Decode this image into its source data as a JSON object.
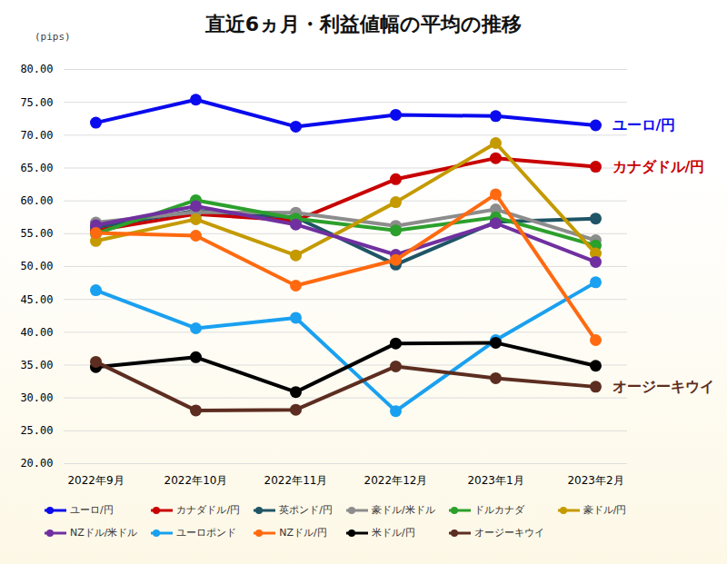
{
  "chart_data": {
    "type": "line",
    "title": "直近6ヵ月・利益値幅の平均の推移",
    "y_label": "(pips)",
    "categories": [
      "2022年9月",
      "2022年10月",
      "2022年11月",
      "2022年12月",
      "2023年1月",
      "2023年2月"
    ],
    "series": [
      {
        "name": "ユーロ/円",
        "color": "#0a0aee",
        "values": [
          71.9,
          75.4,
          71.3,
          73.1,
          72.9,
          71.5
        ]
      },
      {
        "name": "カナダドル/円",
        "color": "#c80000",
        "values": [
          55.5,
          58.0,
          57.0,
          63.3,
          66.5,
          65.2
        ]
      },
      {
        "name": "英ポンド/円",
        "color": "#1f5566",
        "values": [
          56.0,
          58.5,
          57.5,
          50.3,
          56.8,
          57.3
        ]
      },
      {
        "name": "豪ドル/米ドル",
        "color": "#8c8c8c",
        "values": [
          56.7,
          58.3,
          58.2,
          56.2,
          58.7,
          54.0
        ]
      },
      {
        "name": "ドルカナダ",
        "color": "#2ca02c",
        "values": [
          55.0,
          60.1,
          57.3,
          55.5,
          57.5,
          53.2
        ]
      },
      {
        "name": "豪ドル/円",
        "color": "#c49a00",
        "values": [
          53.9,
          57.2,
          51.7,
          59.8,
          68.8,
          52.0
        ]
      },
      {
        "name": "NZドル/米ドル",
        "color": "#7030a0",
        "values": [
          56.3,
          59.2,
          56.4,
          51.8,
          56.6,
          50.7
        ]
      },
      {
        "name": "ユーロポンド",
        "color": "#1aa0f0",
        "values": [
          46.4,
          40.6,
          42.2,
          28.0,
          38.8,
          47.6
        ]
      },
      {
        "name": "NZドル/円",
        "color": "#ff6a10",
        "values": [
          55.1,
          54.7,
          47.1,
          51.0,
          61.0,
          38.8
        ]
      },
      {
        "name": "米ドル/円",
        "color": "#000000",
        "values": [
          34.7,
          36.2,
          30.9,
          38.3,
          38.4,
          34.9
        ]
      },
      {
        "name": "オージーキウイ",
        "color": "#5c2d20",
        "values": [
          35.5,
          28.1,
          28.2,
          34.8,
          33.0,
          31.7
        ]
      }
    ],
    "annotations": [
      {
        "text": "ユーロ/円",
        "series": "ユーロ/円"
      },
      {
        "text": "カナダドル/円",
        "series": "カナダドル/円"
      },
      {
        "text": "オージーキウイ",
        "series": "オージーキウイ"
      }
    ],
    "ylim": [
      20,
      80
    ],
    "yticks": [
      {
        "value": 20,
        "label": "20.00"
      },
      {
        "value": 25,
        "label": "25.00"
      },
      {
        "value": 30,
        "label": "30.00"
      },
      {
        "value": 35,
        "label": "35.00"
      },
      {
        "value": 40,
        "label": "40.00"
      },
      {
        "value": 45,
        "label": "45.00"
      },
      {
        "value": 50,
        "label": "50.00"
      },
      {
        "value": 55,
        "label": "55.00"
      },
      {
        "value": 60,
        "label": "60.00"
      },
      {
        "value": 65,
        "label": "65.00"
      },
      {
        "value": 70,
        "label": "70.00"
      },
      {
        "value": 75,
        "label": "75.00"
      },
      {
        "value": 80,
        "label": "80.00"
      }
    ],
    "grid": true,
    "legend": "bottom",
    "marker": "circle"
  }
}
